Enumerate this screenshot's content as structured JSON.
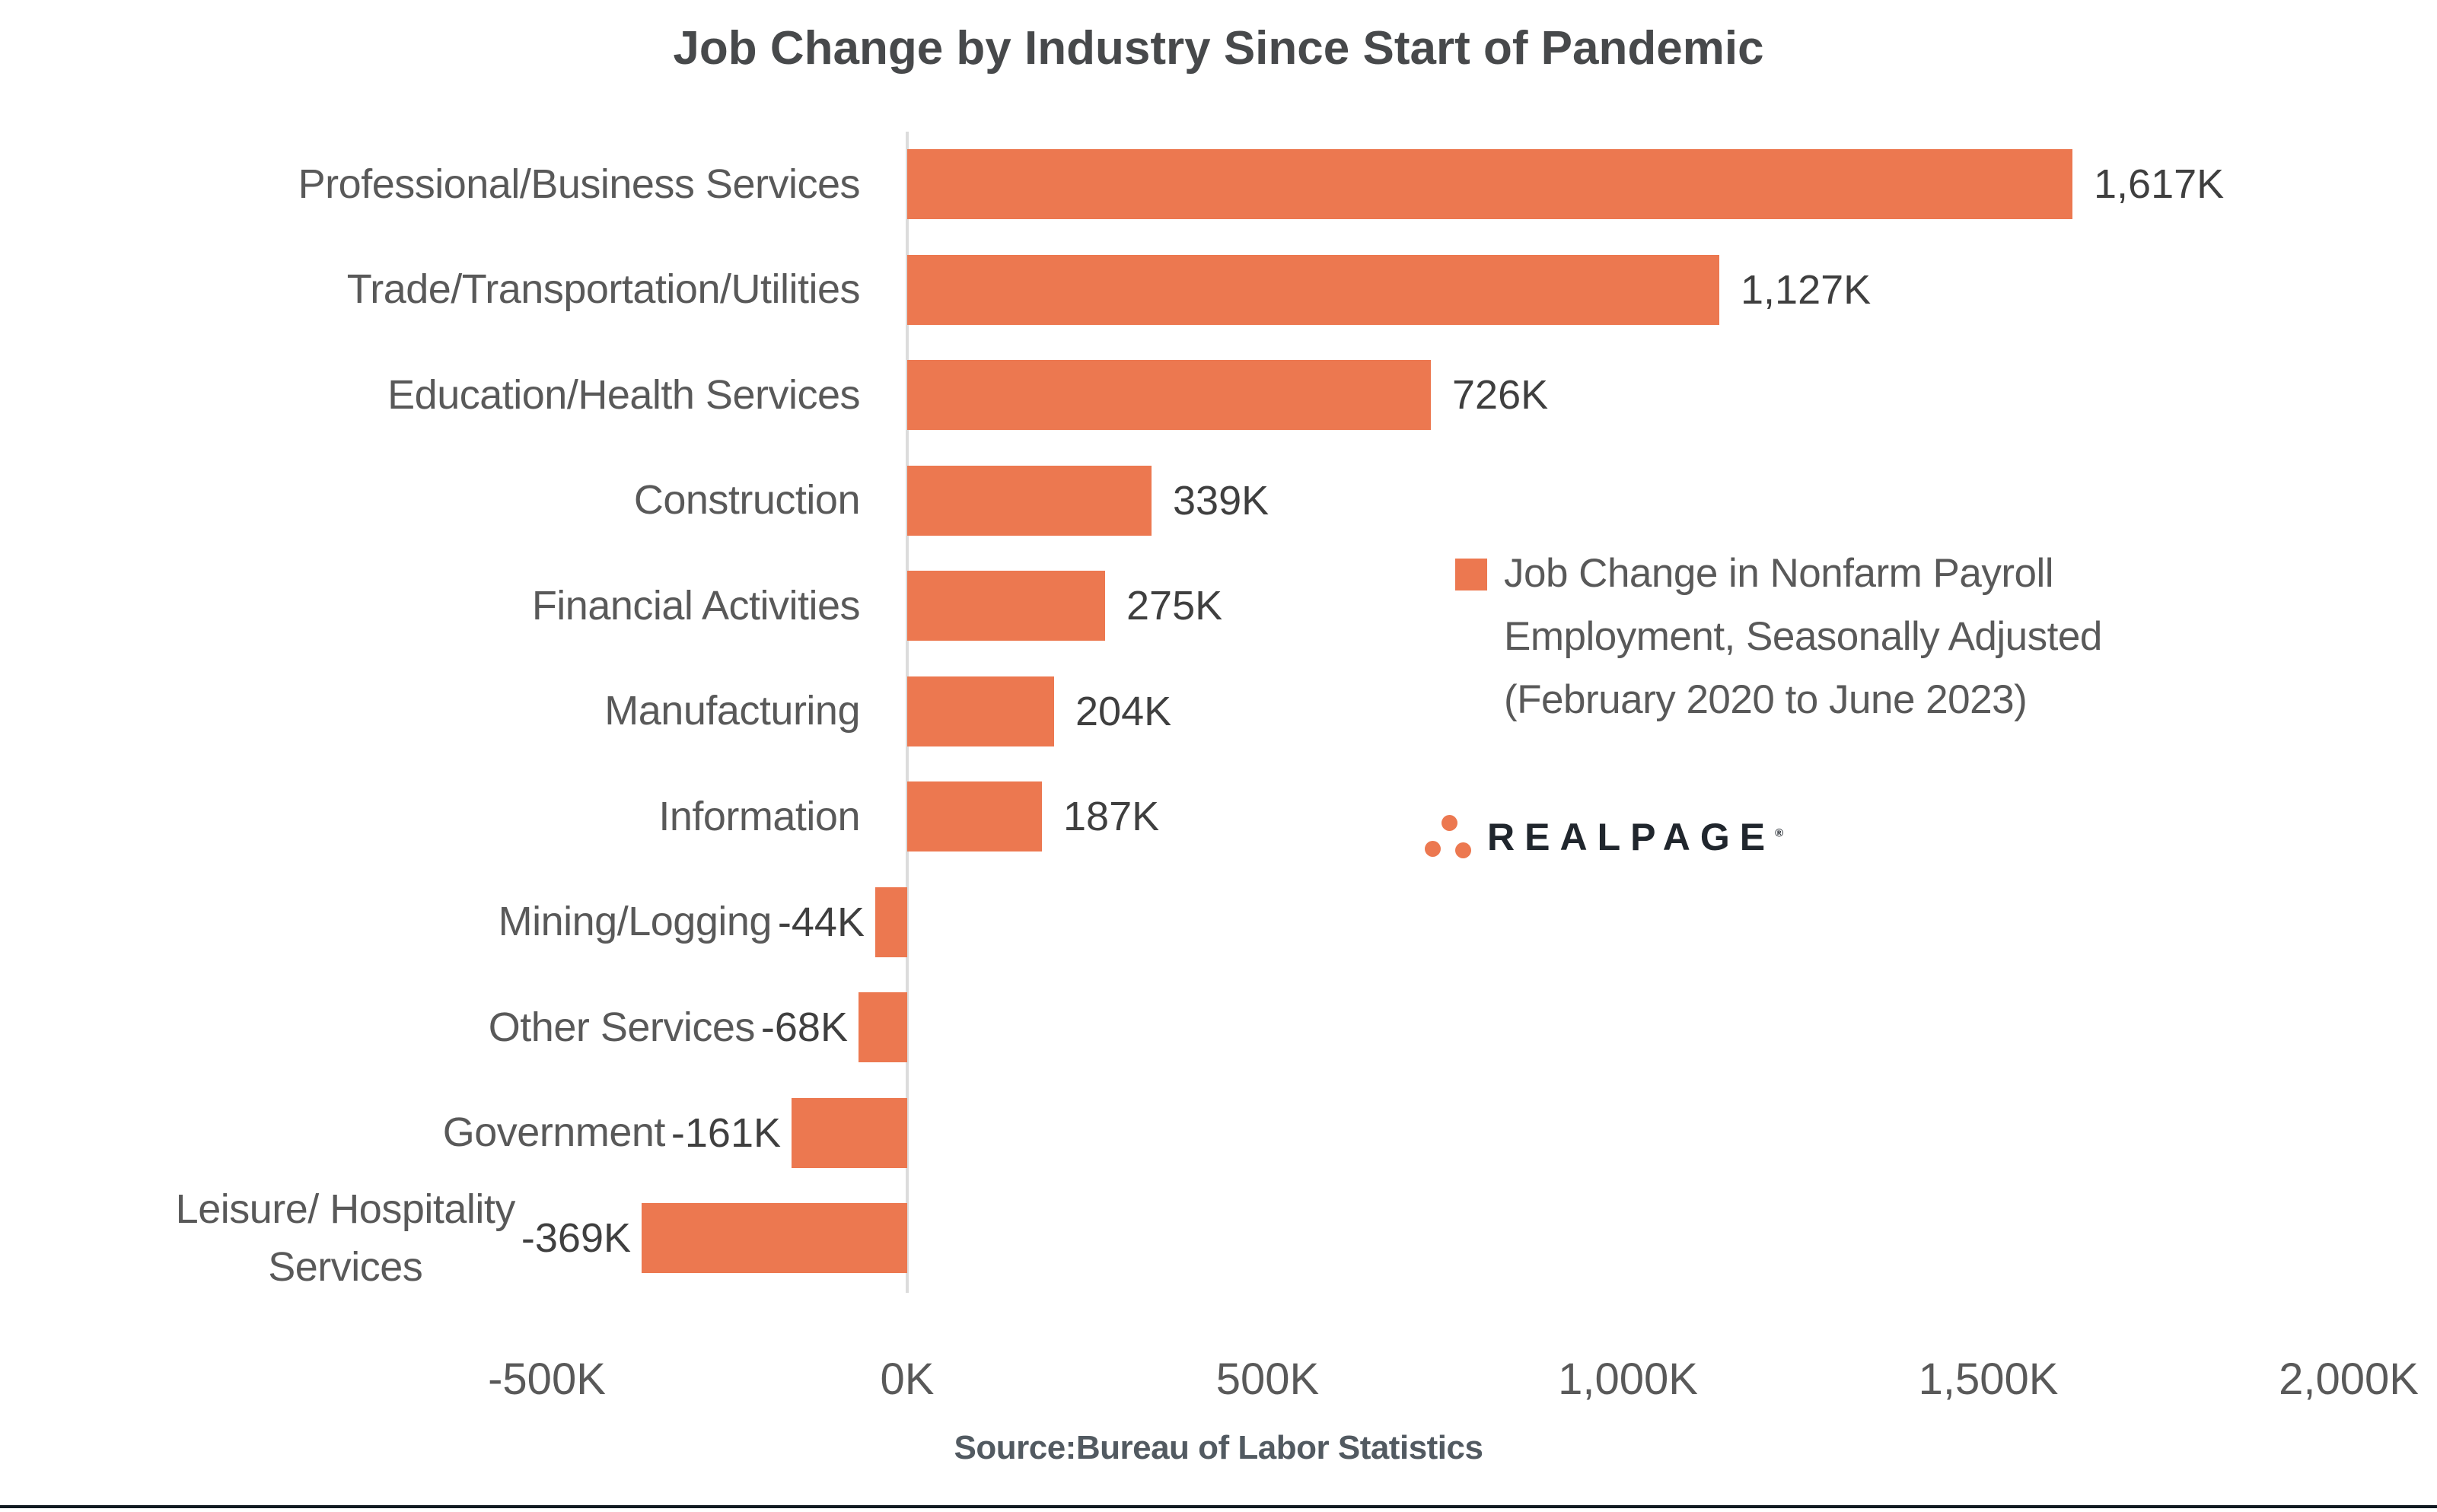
{
  "title": "Job Change by Industry Since Start of Pandemic",
  "chart_data": {
    "type": "bar",
    "orientation": "horizontal",
    "title": "Job Change by Industry Since Start of Pandemic",
    "categories": [
      "Professional/Business Services",
      "Trade/Transportation/Utilities",
      "Education/Health Services",
      "Construction",
      "Financial Activities",
      "Manufacturing",
      "Information",
      "Mining/Logging",
      "Other Services",
      "Government",
      "Leisure/ Hospitality\nServices"
    ],
    "values": [
      1617,
      1127,
      726,
      339,
      275,
      204,
      187,
      -44,
      -68,
      -161,
      -369
    ],
    "value_labels": [
      "1,617K",
      "1,127K",
      "726K",
      "339K",
      "275K",
      "204K",
      "187K",
      "-44K",
      "-68K",
      "-161K",
      "-369K"
    ],
    "units": "thousands of jobs",
    "xlim": [
      -500,
      2000
    ],
    "x_ticks": {
      "labels": [
        "-500K",
        "0K",
        "500K",
        "1,000K",
        "1,500K",
        "2,000K"
      ],
      "values": [
        -500,
        0,
        500,
        1000,
        1500,
        2000
      ]
    },
    "grid": "off",
    "legend_position": "right-middle",
    "series_name": "Job Change in Nonfarm Payroll Employment, Seasonally Adjusted (February 2020 to June 2023)"
  },
  "legend": {
    "lines": [
      "Job Change in Nonfarm Payroll",
      "Employment, Seasonally Adjusted",
      "(February 2020 to June 2023)"
    ]
  },
  "source": "Source:Bureau of Labor Statistics",
  "logo": {
    "text": "REALPAGE",
    "reg": "®"
  },
  "colors": {
    "bar": "#EC7850",
    "legend_marker": "#EC7850",
    "logo_dot": "#EC7850",
    "title_text": "#47494B",
    "label_text": "#595959",
    "value_text": "#3F3F3F",
    "axis_line": "#DCDCDC",
    "footer_rule": "#111A22"
  }
}
